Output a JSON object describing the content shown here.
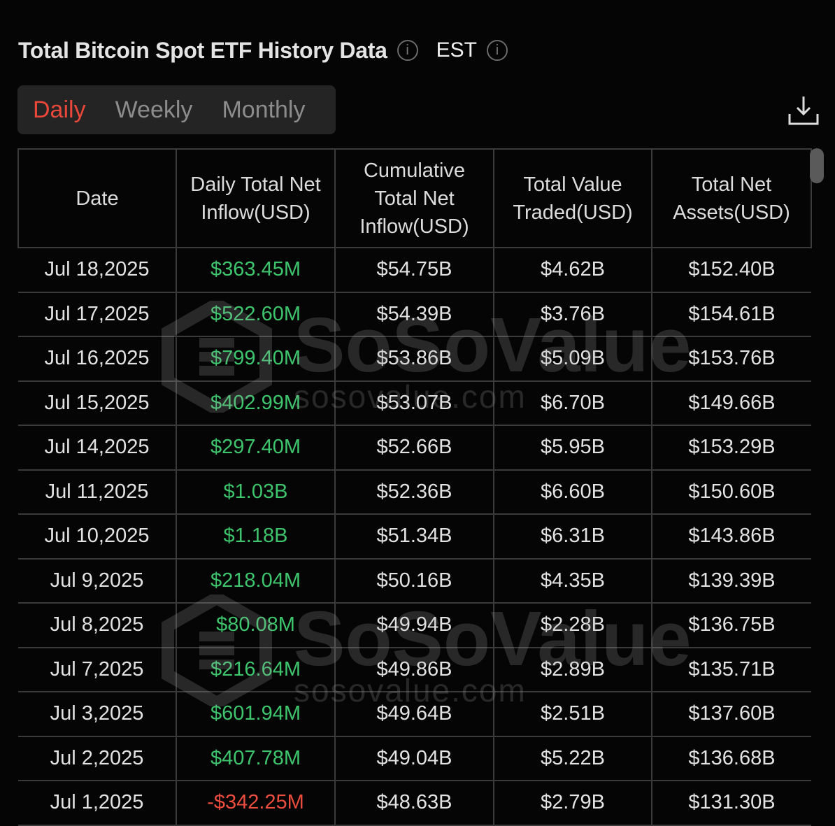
{
  "header": {
    "title": "Total Bitcoin Spot ETF History Data",
    "timezone": "EST"
  },
  "tabs": [
    {
      "label": "Daily",
      "active": true
    },
    {
      "label": "Weekly",
      "active": false
    },
    {
      "label": "Monthly",
      "active": false
    }
  ],
  "accent_color": "#e8473a",
  "positive_color": "#3ec46d",
  "negative_color": "#ea4d3d",
  "watermark": {
    "brand": "SoSoValue",
    "site": "sosovalue.com"
  },
  "table": {
    "columns": [
      "Date",
      "Daily Total Net Inflow(USD)",
      "Cumulative Total Net Inflow(USD)",
      "Total Value Traded(USD)",
      "Total Net Assets(USD)"
    ],
    "rows": [
      [
        "Jul 18,2025",
        "$363.45M",
        "$54.75B",
        "$4.62B",
        "$152.40B"
      ],
      [
        "Jul 17,2025",
        "$522.60M",
        "$54.39B",
        "$3.76B",
        "$154.61B"
      ],
      [
        "Jul 16,2025",
        "$799.40M",
        "$53.86B",
        "$5.09B",
        "$153.76B"
      ],
      [
        "Jul 15,2025",
        "$402.99M",
        "$53.07B",
        "$6.70B",
        "$149.66B"
      ],
      [
        "Jul 14,2025",
        "$297.40M",
        "$52.66B",
        "$5.95B",
        "$153.29B"
      ],
      [
        "Jul 11,2025",
        "$1.03B",
        "$52.36B",
        "$6.60B",
        "$150.60B"
      ],
      [
        "Jul 10,2025",
        "$1.18B",
        "$51.34B",
        "$6.31B",
        "$143.86B"
      ],
      [
        "Jul 9,2025",
        "$218.04M",
        "$50.16B",
        "$4.35B",
        "$139.39B"
      ],
      [
        "Jul 8,2025",
        "$80.08M",
        "$49.94B",
        "$2.28B",
        "$136.75B"
      ],
      [
        "Jul 7,2025",
        "$216.64M",
        "$49.86B",
        "$2.89B",
        "$135.71B"
      ],
      [
        "Jul 3,2025",
        "$601.94M",
        "$49.64B",
        "$2.51B",
        "$137.60B"
      ],
      [
        "Jul 2,2025",
        "$407.78M",
        "$49.04B",
        "$5.22B",
        "$136.68B"
      ],
      [
        "Jul 1,2025",
        "-$342.25M",
        "$48.63B",
        "$2.79B",
        "$131.30B"
      ]
    ]
  }
}
